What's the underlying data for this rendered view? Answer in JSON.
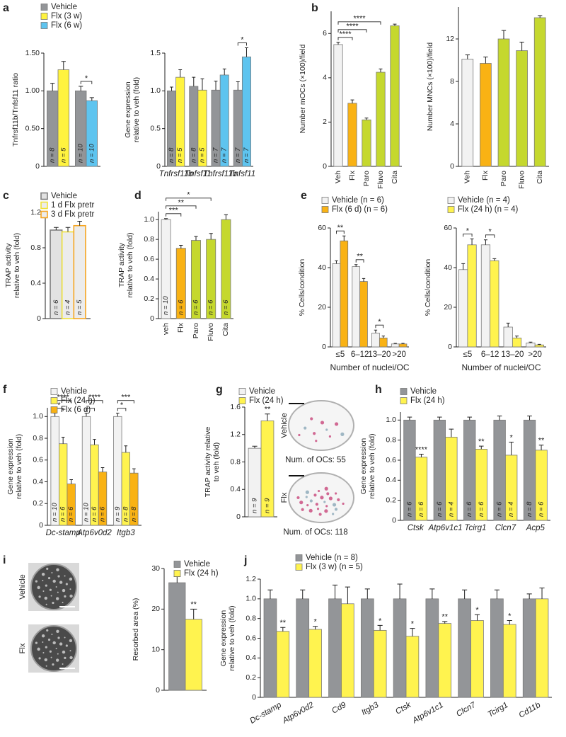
{
  "chart_data": [
    {
      "panel": "a",
      "type": "bar",
      "ylabel": [
        "Tnfrsf11b/Tnfsf11 ratio"
      ],
      "categories": [
        null,
        null
      ],
      "series": [
        {
          "name": "Vehicle",
          "color": "#939598",
          "values": [
            1.0,
            1.0
          ],
          "errors": [
            0.1,
            0.06
          ],
          "n_labels": [
            "n = 8",
            "n = 10"
          ]
        },
        {
          "name": "Flx (3 w)",
          "color": "#fff33f",
          "values": [
            1.28,
            null
          ],
          "errors": [
            0.11,
            null
          ],
          "n_labels": [
            "n = 5",
            null
          ]
        },
        {
          "name": "Flx (6 w)",
          "color": "#5ec4ef",
          "values": [
            null,
            0.87
          ],
          "errors": [
            null,
            0.04
          ],
          "n_labels": [
            null,
            "n = 10"
          ]
        }
      ],
      "ylim": [
        0,
        1.5
      ],
      "yticks": [
        0,
        {
          "value": 0.5,
          "label": "0.50"
        },
        {
          "value": 1,
          "label": "1.00"
        },
        {
          "value": 1.5,
          "label": "1.50"
        }
      ],
      "brackets": [
        {
          "label": "*",
          "from": [
            0,
            1
          ],
          "to": [
            2,
            1
          ]
        }
      ]
    },
    {
      "type": "bar",
      "ylabel": [
        "Gene expression",
        "relative to veh (fold)"
      ],
      "categories": [
        "Tnfrsf11b",
        "Tnfsf11",
        "Tnfrsf11b",
        "Tnfsf11"
      ],
      "series": [
        {
          "color": "#939598",
          "values": [
            1.0,
            1.06,
            1.01,
            1.01
          ],
          "errors": [
            0.05,
            0.12,
            0.12,
            0.11
          ],
          "n_labels": [
            "n = 8",
            "n = 8",
            "n = 7",
            "n = 7"
          ]
        },
        {
          "color": "#fff33f",
          "values": [
            1.18,
            1.01,
            null,
            null
          ],
          "errors": [
            0.1,
            0.15,
            null,
            null
          ],
          "n_labels": [
            "n = 5",
            "n = 5",
            null,
            null
          ]
        },
        {
          "color": "#5ec4ef",
          "values": [
            null,
            null,
            1.21,
            1.45
          ],
          "errors": [
            null,
            null,
            0.08,
            0.12
          ],
          "n_labels": [
            null,
            null,
            "n = 7",
            "n = 7"
          ]
        }
      ],
      "ylim": [
        0,
        1.5
      ],
      "yticks": [
        0,
        0.5,
        {
          "value": 1,
          "label": "1.0"
        },
        1.5
      ],
      "brackets": [
        {
          "label": "*",
          "from": [
            0,
            3
          ],
          "to": [
            2,
            3
          ]
        }
      ]
    },
    {
      "panel": "b",
      "type": "bar",
      "ylabel": [
        "Number mOCs (×100)/field"
      ],
      "categories": [
        "Veh",
        "Flx",
        "Paro",
        "Fluvo",
        "Cita"
      ],
      "series": [
        {
          "colors": [
            "#f2f2f2",
            "#f9b214",
            "#c5d82e",
            "#c5d82e",
            "#c5d82e"
          ],
          "values": [
            5.5,
            2.85,
            2.1,
            4.25,
            6.35
          ],
          "errors": [
            0.1,
            0.15,
            0.08,
            0.15,
            0.07
          ]
        }
      ],
      "ylim": [
        0,
        7
      ],
      "yticks": [
        0,
        2,
        4,
        6
      ],
      "brackets": [
        {
          "label": "****",
          "from": [
            0,
            0
          ],
          "to": [
            0,
            1
          ]
        },
        {
          "label": "****",
          "from": [
            0,
            0
          ],
          "to": [
            0,
            2
          ]
        },
        {
          "label": "****",
          "from": [
            0,
            0
          ],
          "to": [
            0,
            3
          ]
        }
      ]
    },
    {
      "type": "bar",
      "ylabel": [
        "Number MNCs (×100)/field"
      ],
      "categories": [
        "Veh",
        "Flx",
        "Paro",
        "Fluvo",
        "Cita"
      ],
      "series": [
        {
          "colors": [
            "#f2f2f2",
            "#f9b214",
            "#c5d82e",
            "#c5d82e",
            "#c5d82e"
          ],
          "values": [
            10.1,
            9.7,
            12.0,
            10.9,
            14.0
          ],
          "errors": [
            0.4,
            0.6,
            0.8,
            0.8,
            0.2
          ]
        }
      ],
      "ylim": [
        0,
        15
      ],
      "yticks": [
        0,
        4,
        8,
        12
      ]
    },
    {
      "panel": "c",
      "type": "bar",
      "ylabel": [
        "TRAP activity",
        "relative to veh (fold)"
      ],
      "categories": [
        null
      ],
      "series": [
        {
          "name": "Vehicle",
          "color": "#e2e2e2",
          "stroke": "#808080",
          "values": [
            1.0
          ],
          "errors": [
            0.03
          ],
          "n_labels": [
            "n = 6"
          ]
        },
        {
          "name": "1 d Flx pretr",
          "color": "#ececec",
          "stroke": "#f0e23a",
          "values": [
            0.98
          ],
          "errors": [
            0.05
          ],
          "n_labels": [
            "n = 4"
          ]
        },
        {
          "name": "3 d Flx pretr",
          "color": "#ececec",
          "stroke": "#f6a623",
          "values": [
            1.05
          ],
          "errors": [
            0.05
          ],
          "n_labels": [
            "n = 5"
          ]
        }
      ],
      "ylim": [
        0,
        1.2
      ],
      "yticks": [
        0,
        0.4,
        0.8,
        1.2
      ]
    },
    {
      "panel": "d",
      "type": "bar",
      "ylabel": [
        "TRAP activity",
        "relative to veh (fold)"
      ],
      "categories": [
        "veh",
        "Flx",
        "Paro",
        "Fluvo",
        "Cita"
      ],
      "series": [
        {
          "colors": [
            "#f2f2f2",
            "#f9b214",
            "#c5d82e",
            "#c5d82e",
            "#c5d82e"
          ],
          "values": [
            1.0,
            0.71,
            0.79,
            0.8,
            1.0
          ],
          "errors": [
            0.01,
            0.03,
            0.04,
            0.06,
            0.05
          ],
          "n_labels": [
            "n = 10",
            "n = 6",
            "n = 6",
            "n = 6",
            "n = 6"
          ]
        }
      ],
      "ylim": [
        0,
        1.08
      ],
      "yticks": [
        0,
        0.2,
        0.4,
        0.6,
        0.8,
        {
          "value": 1,
          "label": "1.0"
        }
      ],
      "brackets": [
        {
          "label": "***",
          "from": [
            0,
            0
          ],
          "to": [
            0,
            1
          ]
        },
        {
          "label": "**",
          "from": [
            0,
            0
          ],
          "to": [
            0,
            2
          ]
        },
        {
          "label": "*",
          "from": [
            0,
            0
          ],
          "to": [
            0,
            3
          ]
        }
      ]
    },
    {
      "panel": "e",
      "type": "bar",
      "ylabel": [
        "% Cells/condition"
      ],
      "xlabel": "Number of nuclei/OC",
      "categories": [
        "≤5",
        "6–12",
        "13–20",
        ">20"
      ],
      "series": [
        {
          "name": "Vehicle (n = 6)",
          "color": "#f2f2f2",
          "values": [
            42,
            40.5,
            7,
            1.5
          ],
          "errors": [
            1.5,
            1,
            1.5,
            0.3
          ]
        },
        {
          "name": "Flx (6 d) (n = 6)",
          "color": "#f9b214",
          "values": [
            53.5,
            33,
            4.5,
            1.5
          ],
          "errors": [
            2.5,
            1.5,
            1,
            0.3
          ]
        }
      ],
      "ylim": [
        0,
        60
      ],
      "yticks": [
        0,
        20,
        40,
        60
      ],
      "brackets": [
        {
          "label": "**",
          "from": [
            0,
            0
          ],
          "to": [
            1,
            0
          ]
        },
        {
          "label": "**",
          "from": [
            0,
            1
          ],
          "to": [
            1,
            1
          ]
        },
        {
          "label": "*",
          "from": [
            0,
            2
          ],
          "to": [
            1,
            2
          ]
        }
      ]
    },
    {
      "type": "bar",
      "ylabel": [
        "% Cells/condition"
      ],
      "xlabel": "Number of nuclei/OC",
      "categories": [
        "≤5",
        "6–12",
        "13–20",
        ">20"
      ],
      "series": [
        {
          "name": "Vehicle (n = 4)",
          "color": "#f2f2f2",
          "values": [
            39,
            51.5,
            10,
            2
          ],
          "errors": [
            3,
            2.5,
            2,
            0.4
          ]
        },
        {
          "name": "Flx (24 h) (n = 4)",
          "color": "#fff34f",
          "values": [
            51.5,
            43.5,
            4.5,
            1
          ],
          "errors": [
            3,
            1,
            1,
            0.3
          ]
        }
      ],
      "ylim": [
        0,
        60
      ],
      "yticks": [
        0,
        20,
        40,
        60
      ],
      "brackets": [
        {
          "label": "*",
          "from": [
            0,
            0
          ],
          "to": [
            1,
            0
          ]
        },
        {
          "label": "*",
          "from": [
            0,
            1
          ],
          "to": [
            1,
            1
          ]
        }
      ]
    },
    {
      "panel": "f",
      "type": "bar",
      "ylabel": [
        "Gene expression",
        "relative to veh (fold)"
      ],
      "categories": [
        "Dc-stamp",
        "Atp6v0d2",
        "Itgb3"
      ],
      "series": [
        {
          "name": "Vehicle",
          "color": "#f2f2f2",
          "values": [
            1.0,
            1.0,
            1.0
          ],
          "errors": [
            0.03,
            0.03,
            0.03
          ],
          "n_labels": [
            "n = 10",
            "n = 10",
            "n = 9"
          ]
        },
        {
          "name": "Flx (24 h)",
          "color": "#fff34f",
          "values": [
            0.75,
            0.74,
            0.67
          ],
          "errors": [
            0.06,
            0.05,
            0.06
          ],
          "n_labels": [
            "n = 6",
            "n = 6",
            "n = 8"
          ]
        },
        {
          "name": "Flx (6 d)",
          "color": "#f9b214",
          "values": [
            0.38,
            0.49,
            0.48
          ],
          "errors": [
            0.04,
            0.04,
            0.04
          ],
          "n_labels": [
            "n = 6",
            "n = 6",
            "n = 8"
          ]
        }
      ],
      "ylim": [
        0,
        1.08
      ],
      "yticks": [
        0,
        0.2,
        0.4,
        0.6,
        0.8,
        {
          "value": 1,
          "label": "1.0"
        }
      ],
      "brackets": [
        {
          "label": "*",
          "from": [
            0,
            0
          ],
          "to": [
            1,
            0
          ]
        },
        {
          "label": "****",
          "from": [
            0,
            0
          ],
          "to": [
            2,
            0
          ]
        },
        {
          "label": "*",
          "from": [
            0,
            1
          ],
          "to": [
            1,
            1
          ]
        },
        {
          "label": "****",
          "from": [
            0,
            1
          ],
          "to": [
            2,
            1
          ]
        },
        {
          "label": "*",
          "from": [
            0,
            2
          ],
          "to": [
            1,
            2
          ]
        },
        {
          "label": "***",
          "from": [
            0,
            2
          ],
          "to": [
            2,
            2
          ]
        }
      ]
    },
    {
      "panel": "g",
      "type": "bar",
      "ylabel": [
        "TRAP activity relative",
        "to veh (fold)"
      ],
      "categories": [
        null
      ],
      "series": [
        {
          "name": "Vehicle",
          "color": "#f2f2f2",
          "values": [
            1.0
          ],
          "errors": [
            0.03
          ],
          "n_labels": [
            "n = 9"
          ]
        },
        {
          "name": "Flx (24 h)",
          "color": "#fff34f",
          "values": [
            1.4
          ],
          "errors": [
            0.1
          ],
          "n_labels": [
            "n = 9"
          ],
          "stars": [
            "**"
          ]
        }
      ],
      "ylim": [
        0,
        1.6
      ],
      "yticks": [
        0,
        0.4,
        0.8,
        1.2,
        1.6
      ],
      "images": [
        {
          "label": "Vehicle",
          "caption": "Num. of OCs: 55"
        },
        {
          "label": "Flx",
          "caption": "Num. of OCs: 118"
        }
      ]
    },
    {
      "panel": "h",
      "type": "bar",
      "ylabel": [
        "Gene expression",
        "relative to veh (fold)"
      ],
      "categories": [
        "Ctsk",
        "Atp6v1c1",
        "Tcirg1",
        "Clcn7",
        "Acp5"
      ],
      "series": [
        {
          "name": "Vehicle",
          "color": "#939598",
          "values": [
            1.0,
            1.0,
            1.0,
            1.0,
            1.0
          ],
          "errors": [
            0.03,
            0.03,
            0.03,
            0.04,
            0.04
          ],
          "n_labels": [
            "n = 6",
            "n = 6",
            "n = 6",
            "n = 6",
            "n = 8"
          ]
        },
        {
          "name": "Flx (24 h)",
          "color": "#fff34f",
          "values": [
            0.63,
            0.83,
            0.71,
            0.65,
            0.7
          ],
          "errors": [
            0.03,
            0.08,
            0.03,
            0.13,
            0.05
          ],
          "n_labels": [
            "n = 6",
            "n = 4",
            "n = 6",
            "n = 4",
            "n = 6"
          ],
          "stars": [
            "****",
            null,
            "**",
            "*",
            "**"
          ]
        }
      ],
      "ylim": [
        0,
        1.08
      ],
      "yticks": [
        0,
        0.2,
        0.4,
        0.6,
        0.8,
        {
          "value": 1,
          "label": "1.0"
        }
      ]
    },
    {
      "panel": "i",
      "type": "bar",
      "ylabel": [
        "Resorbed area (%)"
      ],
      "categories": [
        null
      ],
      "series": [
        {
          "name": "Vehicle",
          "color": "#939598",
          "values": [
            26.5
          ],
          "errors": [
            1.5
          ]
        },
        {
          "name": "Flx (24 h)",
          "color": "#fff34f",
          "values": [
            17.5
          ],
          "errors": [
            2.5
          ],
          "stars": [
            "**"
          ]
        }
      ],
      "ylim": [
        0,
        30
      ],
      "yticks": [
        0,
        10,
        20,
        30
      ],
      "images": [
        {
          "label": "Vehicle"
        },
        {
          "label": "Flx"
        }
      ]
    },
    {
      "panel": "j",
      "type": "bar",
      "ylabel": [
        "Gene expression",
        "relative to veh (fold)"
      ],
      "categories": [
        "Dc-stamp",
        "Atp6v0d2",
        "Cd9",
        "Itgb3",
        "Ctsk",
        "Atp6v1c1",
        "Clcn7",
        "Tcirg1",
        "Cd11b"
      ],
      "series": [
        {
          "name": "Vehicle (n = 8)",
          "color": "#939598",
          "values": [
            1.0,
            1.0,
            1.0,
            1.0,
            1.0,
            1.0,
            1.0,
            1.0,
            1.0
          ],
          "errors": [
            0.09,
            0.09,
            0.14,
            0.1,
            0.15,
            0.1,
            0.09,
            0.09,
            0.05
          ]
        },
        {
          "name": "Flx (3 w) (n = 5)",
          "color": "#fff34f",
          "values": [
            0.67,
            0.69,
            0.95,
            0.68,
            0.62,
            0.75,
            0.78,
            0.74,
            1.0
          ],
          "errors": [
            0.04,
            0.03,
            0.17,
            0.05,
            0.08,
            0.02,
            0.06,
            0.04,
            0.11
          ],
          "stars": [
            "**",
            "*",
            null,
            "*",
            "*",
            "**",
            "*",
            "*",
            null
          ]
        }
      ],
      "ylim": [
        0,
        1.2
      ],
      "yticks": [
        0,
        0.2,
        0.4,
        0.6,
        0.8,
        {
          "value": 1,
          "label": "1.0"
        },
        1.2
      ]
    }
  ]
}
